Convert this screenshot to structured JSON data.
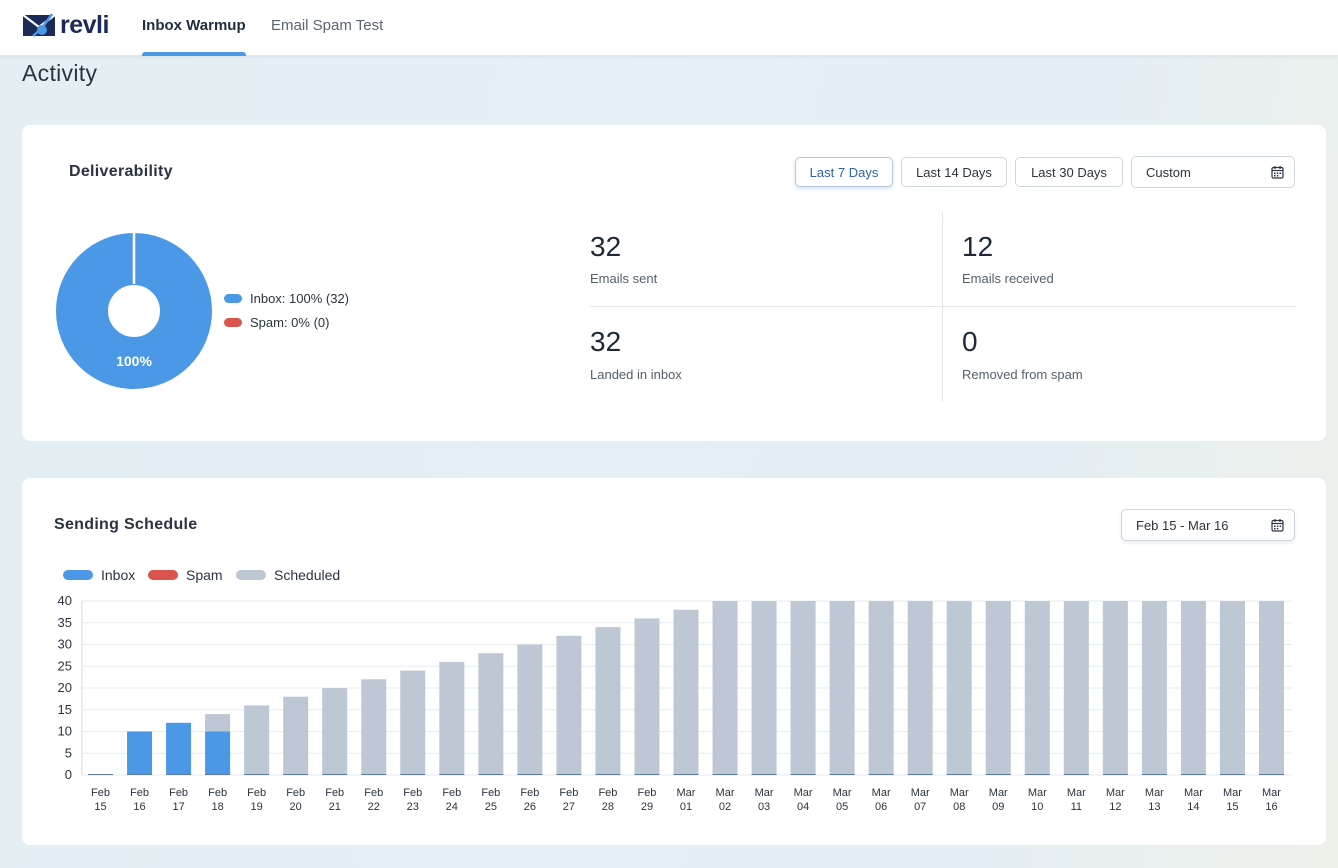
{
  "app": {
    "logo_text": "revli",
    "nav": [
      {
        "label": "Inbox Warmup",
        "active": true
      },
      {
        "label": "Email Spam Test",
        "active": false
      }
    ],
    "page_title": "Activity"
  },
  "deliverability": {
    "title": "Deliverability",
    "ranges": [
      "Last 7 Days",
      "Last 14 Days",
      "Last 30 Days"
    ],
    "active_range": "Last 7 Days",
    "custom_label": "Custom",
    "donut": {
      "center_label": "100%",
      "inbox_fraction": 1.0,
      "colors": {
        "inbox": "#4a98e6",
        "spam": "#d9534f"
      }
    },
    "legend": [
      {
        "label": "Inbox: 100% (32)",
        "color": "#4a98e6"
      },
      {
        "label": "Spam: 0% (0)",
        "color": "#d9534f"
      }
    ],
    "stats": [
      {
        "value": "32",
        "label": "Emails sent"
      },
      {
        "value": "12",
        "label": "Emails received"
      },
      {
        "value": "32",
        "label": "Landed in inbox"
      },
      {
        "value": "0",
        "label": "Removed from spam"
      }
    ]
  },
  "schedule": {
    "title": "Sending Schedule",
    "date_range": "Feb 15 - Mar 16",
    "legend": [
      {
        "label": "Inbox",
        "color": "#4a98e6"
      },
      {
        "label": "Spam",
        "color": "#d9534f"
      },
      {
        "label": "Scheduled",
        "color": "#bdc8d4"
      }
    ]
  },
  "chart_data": {
    "type": "bar",
    "stacked": true,
    "categories": [
      "Feb 15",
      "Feb 16",
      "Feb 17",
      "Feb 18",
      "Feb 19",
      "Feb 20",
      "Feb 21",
      "Feb 22",
      "Feb 23",
      "Feb 24",
      "Feb 25",
      "Feb 26",
      "Feb 27",
      "Feb 28",
      "Feb 29",
      "Mar 01",
      "Mar 02",
      "Mar 03",
      "Mar 04",
      "Mar 05",
      "Mar 06",
      "Mar 07",
      "Mar 08",
      "Mar 09",
      "Mar 10",
      "Mar 11",
      "Mar 12",
      "Mar 13",
      "Mar 14",
      "Mar 15",
      "Mar 16"
    ],
    "series": [
      {
        "name": "Inbox",
        "color": "#4a98e6",
        "values": [
          0,
          10,
          12,
          10,
          0,
          0,
          0,
          0,
          0,
          0,
          0,
          0,
          0,
          0,
          0,
          0,
          0,
          0,
          0,
          0,
          0,
          0,
          0,
          0,
          0,
          0,
          0,
          0,
          0,
          0,
          0
        ]
      },
      {
        "name": "Spam",
        "color": "#d9534f",
        "values": [
          0,
          0,
          0,
          0,
          0,
          0,
          0,
          0,
          0,
          0,
          0,
          0,
          0,
          0,
          0,
          0,
          0,
          0,
          0,
          0,
          0,
          0,
          0,
          0,
          0,
          0,
          0,
          0,
          0,
          0,
          0
        ]
      },
      {
        "name": "Scheduled",
        "color": "#bdc8d4",
        "values": [
          0,
          0,
          0,
          4,
          16,
          18,
          20,
          22,
          24,
          26,
          28,
          30,
          32,
          34,
          36,
          38,
          40,
          40,
          40,
          40,
          40,
          40,
          40,
          40,
          40,
          40,
          40,
          40,
          40,
          40,
          40
        ]
      }
    ],
    "ylim": [
      0,
      40
    ],
    "yticks": [
      0,
      5,
      10,
      15,
      20,
      25,
      30,
      35,
      40
    ],
    "grid": true,
    "legend": "top-left"
  }
}
